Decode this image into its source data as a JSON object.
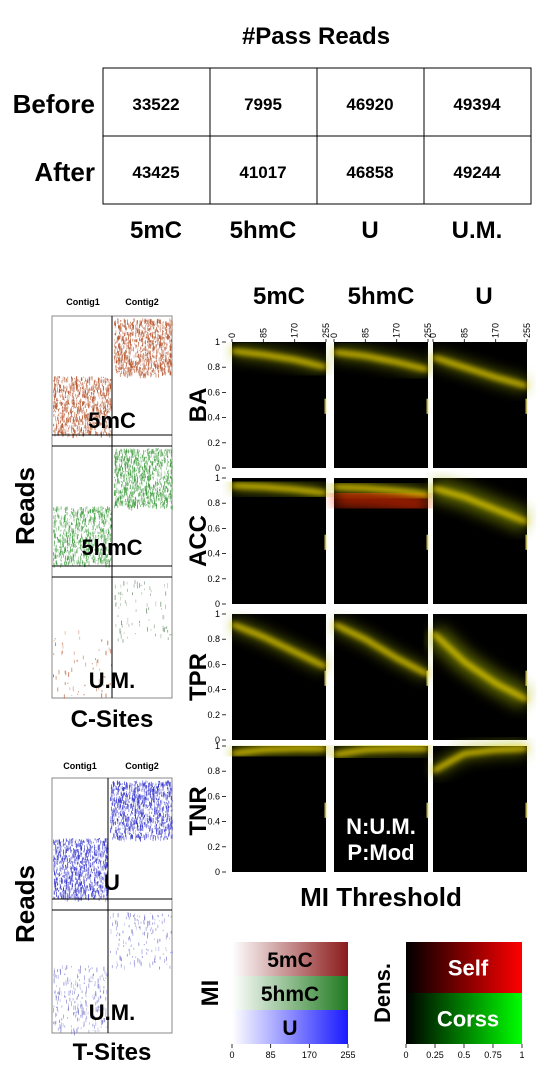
{
  "table": {
    "title": "#Pass Reads",
    "row_labels": [
      "Before",
      "After"
    ],
    "col_labels": [
      "5mC",
      "5hmC",
      "U",
      "U.M."
    ],
    "values": [
      [
        33522,
        7995,
        46920,
        49394
      ],
      [
        43425,
        41017,
        46858,
        49244
      ]
    ]
  },
  "left_panels": {
    "c_sites": {
      "axis_label": "Reads",
      "bottom_label": "C-Sites",
      "contigs": [
        "Contig1",
        "Contig2"
      ],
      "blocks": [
        "5mC",
        "5hmC",
        "U.M."
      ]
    },
    "t_sites": {
      "axis_label": "Reads",
      "bottom_label": "T-Sites",
      "contigs": [
        "Contig1",
        "Contig2"
      ],
      "blocks": [
        "U",
        "U.M."
      ]
    }
  },
  "chart_data": {
    "type": "heatmap",
    "x_ticks": [
      0,
      85,
      170,
      255
    ],
    "y_ticks": [
      0,
      0.2,
      0.4,
      0.6,
      0.8,
      1
    ],
    "xlim": [
      0,
      255
    ],
    "ylim": [
      0,
      1
    ],
    "xlabel": "MI Threshold",
    "columns": [
      "5mC",
      "5hmC",
      "U"
    ],
    "rows": [
      "BA",
      "ACC",
      "TPR",
      "TNR"
    ],
    "annotation": [
      "N:U.M.",
      "P:Mod"
    ],
    "curves": {
      "BA": [
        {
          "x": [
            0,
            85,
            170,
            255
          ],
          "y": [
            0.93,
            0.9,
            0.86,
            0.8
          ]
        },
        {
          "x": [
            0,
            85,
            170,
            255
          ],
          "y": [
            0.92,
            0.89,
            0.84,
            0.78
          ]
        },
        {
          "x": [
            0,
            85,
            170,
            255
          ],
          "y": [
            0.88,
            0.8,
            0.72,
            0.65
          ]
        }
      ],
      "ACC": [
        {
          "x": [
            0,
            85,
            170,
            255
          ],
          "y": [
            0.94,
            0.93,
            0.91,
            0.88
          ]
        },
        {
          "x": [
            0,
            85,
            170,
            255
          ],
          "y": [
            0.93,
            0.92,
            0.9,
            0.87
          ]
        },
        {
          "x": [
            0,
            85,
            170,
            255
          ],
          "y": [
            0.92,
            0.85,
            0.75,
            0.65
          ]
        }
      ],
      "TPR": [
        {
          "x": [
            0,
            85,
            170,
            255
          ],
          "y": [
            0.92,
            0.82,
            0.7,
            0.58
          ]
        },
        {
          "x": [
            0,
            85,
            170,
            255
          ],
          "y": [
            0.92,
            0.8,
            0.65,
            0.52
          ]
        },
        {
          "x": [
            0,
            85,
            170,
            255
          ],
          "y": [
            0.85,
            0.62,
            0.45,
            0.32
          ]
        }
      ],
      "TNR": [
        {
          "x": [
            0,
            85,
            170,
            255
          ],
          "y": [
            0.94,
            0.97,
            0.98,
            0.98
          ]
        },
        {
          "x": [
            0,
            85,
            170,
            255
          ],
          "y": [
            0.93,
            0.97,
            0.98,
            0.98
          ]
        },
        {
          "x": [
            0,
            85,
            170,
            255
          ],
          "y": [
            0.8,
            0.94,
            0.97,
            0.98
          ]
        }
      ]
    }
  },
  "legend_mi": {
    "label": "MI",
    "entries": [
      "5mC",
      "5hmC",
      "U"
    ],
    "colors": [
      "#8b1a1a",
      "#1f7a1f",
      "#1a1aff"
    ],
    "ticks": [
      0,
      85,
      170,
      255
    ]
  },
  "legend_density": {
    "label": "Dens.",
    "entries": [
      "Self",
      "Corss"
    ],
    "ticks": [
      0,
      0.25,
      0.5,
      0.75,
      1
    ]
  }
}
